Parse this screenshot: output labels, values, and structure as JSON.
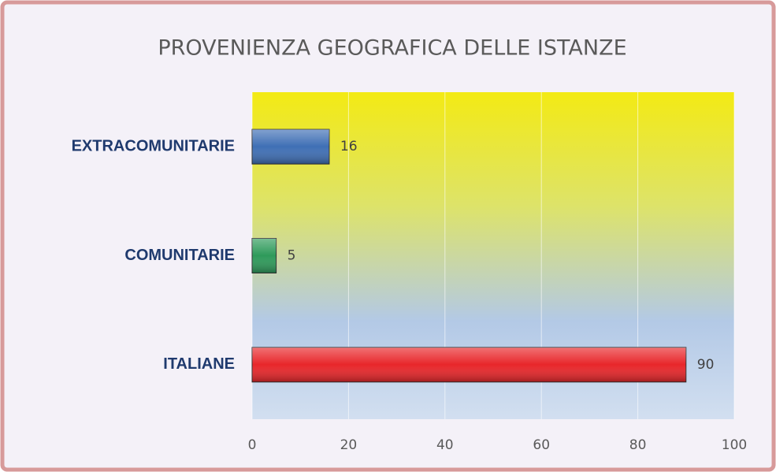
{
  "chart_data": {
    "type": "bar",
    "orientation": "horizontal",
    "title": "PROVENIENZA GEOGRAFICA DELLE ISTANZE",
    "categories": [
      "EXTRACOMUNITARIE",
      "COMUNITARIE",
      "ITALIANE"
    ],
    "values": [
      16,
      5,
      90
    ],
    "colors": [
      "#3f6fb5",
      "#2e9a5a",
      "#e8262a"
    ],
    "xlim": [
      0,
      100
    ],
    "xticks": [
      0,
      20,
      40,
      60,
      80,
      100
    ],
    "grid": true
  }
}
